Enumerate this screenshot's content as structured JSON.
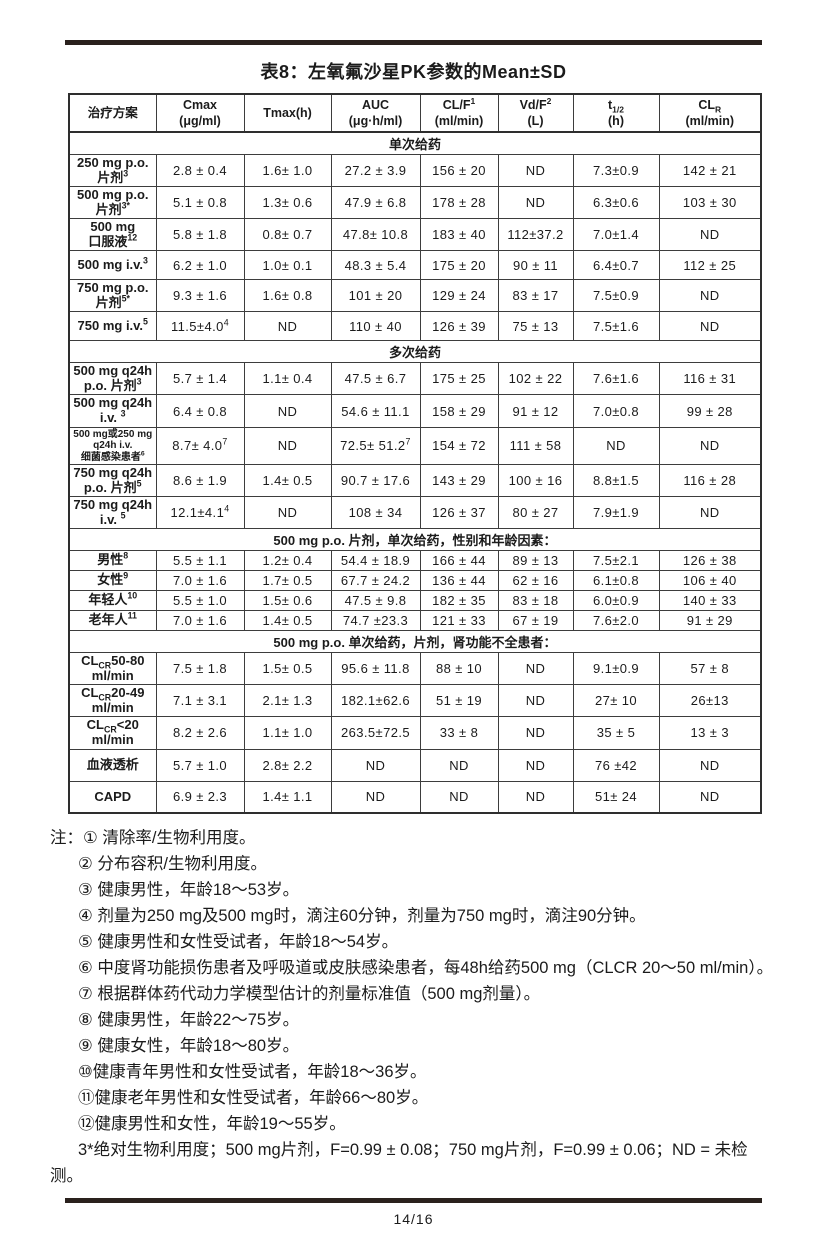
{
  "page": {
    "title": "表8：左氧氟沙星PK参数的Mean±SD",
    "page_number": "14/16"
  },
  "colors": {
    "rule": "#2a211d",
    "table_border": "#3d3d3d",
    "text": "#1b1b1b"
  },
  "table": {
    "headers": [
      "治疗方案",
      "Cmax\n(μg/ml)",
      "Tmax(h)",
      "AUC\n(μg·h/ml)",
      "CL/F^{1}\n(ml/min)",
      "Vd/F^{2}\n(L)",
      "t_{1/2}\n(h)",
      "CL_{R}\n(ml/min)"
    ],
    "rows": [
      {
        "type": "section",
        "label": "单次给药"
      },
      {
        "type": "data",
        "size": "lg",
        "label": "250 mg p.o.\n片剂^{3}",
        "cells": [
          "2.8 ± 0.4",
          "1.6± 1.0",
          "27.2 ± 3.9",
          "156 ± 20",
          "ND",
          "7.3±0.9",
          "142 ± 21"
        ]
      },
      {
        "type": "data",
        "size": "lg",
        "label": "500 mg p.o.\n片剂^{3*}",
        "cells": [
          "5.1 ± 0.8",
          "1.3± 0.6",
          "47.9 ± 6.8",
          "178 ± 28",
          "ND",
          "6.3±0.6",
          "103 ± 30"
        ]
      },
      {
        "type": "data",
        "size": "lg",
        "label": "500 mg\n口服液^{12}",
        "cells": [
          "5.8 ± 1.8",
          "0.8± 0.7",
          "47.8± 10.8",
          "183 ± 40",
          "112±37.2",
          "7.0±1.4",
          "ND"
        ]
      },
      {
        "type": "data",
        "size": "md",
        "label": "500 mg i.v.^{3}",
        "cells": [
          "6.2 ± 1.0",
          "1.0± 0.1",
          "48.3 ± 5.4",
          "175 ± 20",
          "90 ± 11",
          "6.4±0.7",
          "112 ± 25"
        ]
      },
      {
        "type": "data",
        "size": "lg",
        "label": "750 mg p.o.\n片剂^{5*}",
        "cells": [
          "9.3 ± 1.6",
          "1.6± 0.8",
          "101 ± 20",
          "129 ± 24",
          "83 ± 17",
          "7.5±0.9",
          "ND"
        ]
      },
      {
        "type": "data",
        "size": "md",
        "label": "750 mg i.v.^{5}",
        "cells": [
          "11.5±4.0^{4}",
          "ND",
          "110 ± 40",
          "126 ± 39",
          "75 ± 13",
          "7.5±1.6",
          "ND"
        ]
      },
      {
        "type": "section",
        "label": "多次给药"
      },
      {
        "type": "data",
        "size": "lg",
        "label": "500 mg q24h\np.o. 片剂^{3}",
        "cells": [
          "5.7 ± 1.4",
          "1.1± 0.4",
          "47.5 ± 6.7",
          "175 ± 25",
          "102 ± 22",
          "7.6±1.6",
          "116 ± 31"
        ]
      },
      {
        "type": "data",
        "size": "lg",
        "label": "500 mg q24h\ni.v. ^{3}",
        "cells": [
          "6.4 ± 0.8",
          "ND",
          "54.6 ± 11.1",
          "158 ± 29",
          "91 ± 12",
          "7.0±0.8",
          "99 ± 28"
        ]
      },
      {
        "type": "data",
        "size": "xl",
        "small": true,
        "label": "500 mg或250 mg\nq24h i.v.\n细菌感染患者^{6}",
        "cells": [
          "8.7± 4.0^{7}",
          "ND",
          "72.5± 51.2^{7}",
          "154 ± 72",
          "111 ± 58",
          "ND",
          "ND"
        ]
      },
      {
        "type": "data",
        "size": "lg",
        "label": "750 mg q24h\np.o. 片剂^{5}",
        "cells": [
          "8.6 ± 1.9",
          "1.4± 0.5",
          "90.7 ± 17.6",
          "143 ± 29",
          "100 ± 16",
          "8.8±1.5",
          "116 ± 28"
        ]
      },
      {
        "type": "data",
        "size": "lg",
        "label": "750 mg q24h\ni.v. ^{5}",
        "cells": [
          "12.1±4.1^{4}",
          "ND",
          "108 ± 34",
          "126 ± 37",
          "80 ± 27",
          "7.9±1.9",
          "ND"
        ]
      },
      {
        "type": "section",
        "label": "500 mg p.o. 片剂，单次给药，性别和年龄因素："
      },
      {
        "type": "data",
        "size": "xs",
        "label": "男性^{8}",
        "cells": [
          "5.5 ± 1.1",
          "1.2± 0.4",
          "54.4 ± 18.9",
          "166 ± 44",
          "89 ± 13",
          "7.5±2.1",
          "126 ± 38"
        ]
      },
      {
        "type": "data",
        "size": "xs",
        "label": "女性^{9}",
        "cells": [
          "7.0 ± 1.6",
          "1.7± 0.5",
          "67.7 ± 24.2",
          "136 ± 44",
          "62 ± 16",
          "6.1±0.8",
          "106 ± 40"
        ]
      },
      {
        "type": "data",
        "size": "xs",
        "label": "年轻人^{10}",
        "cells": [
          "5.5 ± 1.0",
          "1.5± 0.6",
          "47.5 ± 9.8",
          "182 ± 35",
          "83 ± 18",
          "6.0±0.9",
          "140 ± 33"
        ]
      },
      {
        "type": "data",
        "size": "xs",
        "label": "老年人^{11}",
        "cells": [
          "7.0 ± 1.6",
          "1.4± 0.5",
          "74.7 ±23.3",
          "121 ± 33",
          "67 ± 19",
          "7.6±2.0",
          "91 ± 29"
        ]
      },
      {
        "type": "section",
        "label": "500 mg p.o. 单次给药，片剂，肾功能不全患者："
      },
      {
        "type": "data",
        "size": "lg",
        "label": "CL_{CR}50-80\nml/min",
        "cells": [
          "7.5 ± 1.8",
          "1.5± 0.5",
          "95.6 ± 11.8",
          "88 ± 10",
          "ND",
          "9.1±0.9",
          "57 ± 8"
        ]
      },
      {
        "type": "data",
        "size": "lg",
        "label": "CL_{CR}20-49\nml/min",
        "cells": [
          "7.1 ± 3.1",
          "2.1± 1.3",
          "182.1±62.6",
          "51 ± 19",
          "ND",
          "27± 10",
          "26±13"
        ]
      },
      {
        "type": "data",
        "size": "lg",
        "label": "CL_{CR}<20\nml/min",
        "cells": [
          "8.2 ± 2.6",
          "1.1± 1.0",
          "263.5±72.5",
          "33 ± 8",
          "ND",
          "35 ± 5",
          "13 ± 3"
        ]
      },
      {
        "type": "data",
        "size": "lg",
        "label": "血液透析",
        "cells": [
          "5.7 ± 1.0",
          "2.8± 2.2",
          "ND",
          "ND",
          "ND",
          "76 ±42",
          "ND"
        ]
      },
      {
        "type": "data",
        "size": "lg",
        "label": "CAPD",
        "cells": [
          "6.9 ± 2.3",
          "1.4± 1.1",
          "ND",
          "ND",
          "ND",
          "51± 24",
          "ND"
        ]
      }
    ]
  },
  "notes": {
    "prefix": "注：",
    "items": [
      "① 清除率/生物利用度。",
      "② 分布容积/生物利用度。",
      "③ 健康男性，年龄18～53岁。",
      "④ 剂量为250 mg及500 mg时，滴注60分钟，剂量为750 mg时，滴注90分钟。",
      "⑤ 健康男性和女性受试者，年龄18～54岁。",
      "⑥ 中度肾功能损伤患者及呼吸道或皮肤感染患者，每48h给药500 mg（CLCR 20～50 ml/min）。",
      "⑦ 根据群体药代动力学模型估计的剂量标准值（500 mg剂量）。",
      "⑧ 健康男性，年龄22～75岁。",
      "⑨ 健康女性，年龄18～80岁。",
      "⑩健康青年男性和女性受试者，年龄18～36岁。",
      "⑪健康老年男性和女性受试者，年龄66～80岁。",
      "⑫健康男性和女性，年龄19～55岁。"
    ],
    "final": "3*绝对生物利用度；500 mg片剂，F=0.99 ± 0.08；750 mg片剂，F=0.99 ± 0.06；ND = 未检测。"
  }
}
